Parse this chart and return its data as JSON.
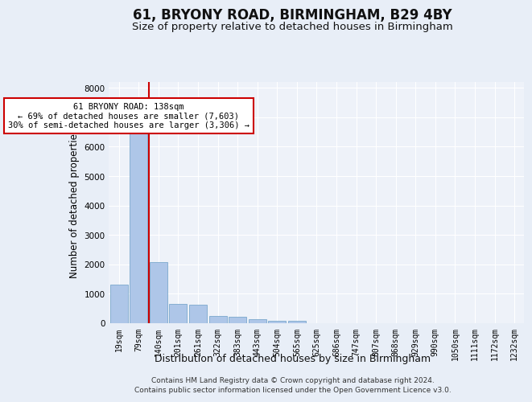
{
  "title": "61, BRYONY ROAD, BIRMINGHAM, B29 4BY",
  "subtitle": "Size of property relative to detached houses in Birmingham",
  "xlabel": "Distribution of detached houses by size in Birmingham",
  "ylabel": "Number of detached properties",
  "footnote1": "Contains HM Land Registry data © Crown copyright and database right 2024.",
  "footnote2": "Contains public sector information licensed under the Open Government Licence v3.0.",
  "categories": [
    "19sqm",
    "79sqm",
    "140sqm",
    "201sqm",
    "261sqm",
    "322sqm",
    "383sqm",
    "443sqm",
    "504sqm",
    "565sqm",
    "625sqm",
    "686sqm",
    "747sqm",
    "807sqm",
    "868sqm",
    "929sqm",
    "990sqm",
    "1050sqm",
    "1111sqm",
    "1172sqm",
    "1232sqm"
  ],
  "values": [
    1300,
    6550,
    2080,
    650,
    620,
    250,
    230,
    130,
    90,
    75,
    0,
    0,
    0,
    0,
    0,
    0,
    0,
    0,
    0,
    0,
    0
  ],
  "bar_color": "#aec6e8",
  "bar_edge_color": "#6a9ec5",
  "marker_line_color": "#cc0000",
  "annotation_line1": "61 BRYONY ROAD: 138sqm",
  "annotation_line2": "← 69% of detached houses are smaller (7,603)",
  "annotation_line3": "30% of semi-detached houses are larger (3,306) →",
  "annotation_box_color": "#ffffff",
  "annotation_box_edge": "#cc0000",
  "ylim": [
    0,
    8200
  ],
  "yticks": [
    0,
    1000,
    2000,
    3000,
    4000,
    5000,
    6000,
    7000,
    8000
  ],
  "bg_color": "#e8eef7",
  "plot_bg_color": "#eef2f9",
  "grid_color": "#ffffff",
  "title_fontsize": 12,
  "subtitle_fontsize": 9.5,
  "ylabel_fontsize": 8.5,
  "xlabel_fontsize": 9,
  "tick_fontsize": 7,
  "footnote_fontsize": 6.5
}
